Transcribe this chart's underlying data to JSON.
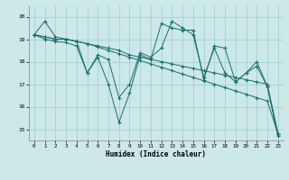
{
  "xlabel": "Humidex (Indice chaleur)",
  "ylabel": "",
  "bg_color": "#cce8e8",
  "grid_color": "#a0cccc",
  "line_color": "#1a6e6e",
  "marker": "+",
  "xlim": [
    -0.5,
    23.5
  ],
  "ylim": [
    14.5,
    20.5
  ],
  "yticks": [
    15,
    16,
    17,
    18,
    19,
    20
  ],
  "xticks": [
    0,
    1,
    2,
    3,
    4,
    5,
    6,
    7,
    8,
    9,
    10,
    11,
    12,
    13,
    14,
    15,
    16,
    17,
    18,
    19,
    20,
    21,
    22,
    23
  ],
  "series": [
    [
      19.2,
      19.8,
      19.1,
      19.0,
      18.9,
      17.5,
      18.2,
      17.0,
      15.3,
      16.6,
      18.3,
      18.1,
      19.7,
      19.5,
      19.4,
      19.4,
      17.2,
      18.7,
      18.6,
      17.1,
      17.5,
      18.0,
      16.9,
      14.7
    ],
    [
      19.2,
      19.1,
      19.0,
      19.0,
      18.9,
      18.8,
      18.7,
      18.6,
      18.5,
      18.3,
      18.2,
      18.1,
      18.0,
      17.9,
      17.8,
      17.7,
      17.6,
      17.5,
      17.4,
      17.3,
      17.2,
      17.1,
      17.0,
      14.8
    ],
    [
      19.2,
      19.1,
      19.0,
      19.0,
      18.9,
      18.8,
      18.65,
      18.5,
      18.35,
      18.2,
      18.05,
      17.9,
      17.75,
      17.6,
      17.45,
      17.3,
      17.15,
      17.0,
      16.85,
      16.7,
      16.55,
      16.4,
      16.25,
      14.8
    ],
    [
      19.2,
      19.0,
      18.9,
      18.85,
      18.7,
      17.5,
      18.3,
      18.1,
      16.4,
      17.0,
      18.4,
      18.2,
      18.6,
      19.8,
      19.5,
      19.2,
      17.3,
      18.6,
      17.5,
      17.1,
      17.5,
      17.8,
      16.9,
      14.8
    ]
  ]
}
